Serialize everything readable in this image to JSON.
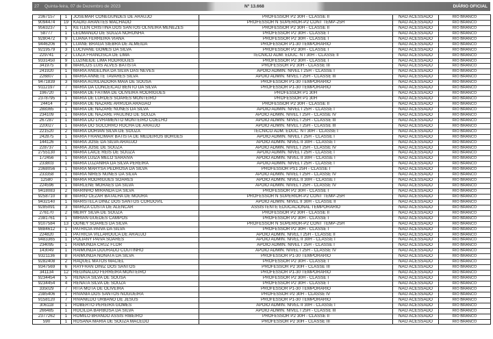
{
  "header": {
    "page": "27",
    "date": "Quinta-feira, 07 de Dezembro de 2023",
    "issue": "Nº 13.668",
    "publication": "DIÁRIO OFICIAL"
  },
  "table": {
    "rows": [
      [
        "2367157",
        "1",
        "JOSEMAR CONEGUNDES DE ARAUJO",
        "PROFESSOR P2 30H - CLASSE II",
        "NAO ACESSADO",
        "RIO BRANCO"
      ],
      [
        "9094474",
        "19",
        "KADIG ARANTES MACHADO",
        "PROFESSOR N SUPERIOR-P2 CONT TEMP-25H",
        "NAO ACESSADO",
        "RIO BRANCO"
      ],
      [
        "9563237",
        "1",
        "KETLEN CRISTINA DOS SANTOS OLIVEIRA MENEZES",
        "PROFESSOR P2 30H - CLASSE II",
        "NAO ACESSADO",
        "RIO BRANCO"
      ],
      [
        "58777",
        "1",
        "LEOMANDO DE SOUZA NORONHA",
        "PROFESSOR P2 30H - CLASSE I",
        "NAO ACESSADO",
        "RIO BRANCO"
      ],
      [
        "9280472",
        "9",
        "LUANA FERREIRA VIANA",
        "PROFESSOR P2 30H - CLASSE I",
        "NAO ACESSADO",
        "RIO BRANCO"
      ],
      [
        "9446206",
        "5",
        "LUANE BRAGA SIEBRA DE ALMEIDA",
        "PROFESSOR P1-30 TEMPORARIO",
        "NAO ACESSADO",
        "RIO BRANCO"
      ],
      [
        "9219579",
        "3",
        "LUCIVANE GOMES DA SILVA",
        "PROFESSOR P2 30H - CLASSE I",
        "NAO ACESSADO",
        "RIO BRANCO"
      ],
      [
        "229741",
        "2",
        "LUIZA FRANCISCA DE LIMA",
        "TECNICO ADM. EDUC. N I 30H - CLASSE II",
        "NAO ACESSADO",
        "RIO BRANCO"
      ],
      [
        "9331450",
        "9",
        "LUZINEIDE LIMA RODRIGUES",
        "PROFESSOR P2 30H - CLASSE I",
        "NAO ACESSADO",
        "RIO BRANCO"
      ],
      [
        "341975",
        "8",
        "MARCOS LUIS ALVES BATISTA",
        "PROFESSOR P2 30H - CLASSE III",
        "NAO ACESSADO",
        "RIO BRANCO"
      ],
      [
        "241920",
        "1",
        "MARIA ANGELINA DA SILVA DAS NEVES",
        "APOIO ADMIN. NIVEL I 25H - CLASSE I",
        "NAO ACESSADO",
        "RIO BRANCO"
      ],
      [
        "226807",
        "1",
        "MARIA ANNETE TAVARES SILVA",
        "APOIO ADMIN. NIVEL I 25H - CLASSE III",
        "NAO ACESSADO",
        "RIO BRANCO"
      ],
      [
        "9471839",
        "3",
        "MARIA AUXILIADORA MAIA DE SOUSA",
        "PROFESSOR P1-30 TEMPORARIO",
        "NAO ACESSADO",
        "RIO BRANCO"
      ],
      [
        "9112197",
        "7",
        "MARIA DA CONCEICAO BENTO DA SILVA",
        "PROFESSOR P1-30 TEMPORARIO",
        "NAO ACESSADO",
        "RIO BRANCO"
      ],
      [
        "196720",
        "1",
        "MARIA DE FATIMA DE OLIVEIRA RODRIGUES",
        "PROFESSOR P1 30H",
        "NAO ACESSADO",
        "RIO BRANCO"
      ],
      [
        "2378795",
        "1",
        "MARIA DE LURDES SOARES MONTEIRO",
        "PROFESSOR P1 30H",
        "NAO ACESSADO",
        "RIO BRANCO"
      ],
      [
        "24414",
        "2",
        "MARIA DE NAZARE ARRUDA ARAGAO",
        "PROFESSOR P2 30H - CLASSE II",
        "NAO ACESSADO",
        "RIO BRANCO"
      ],
      [
        "288365",
        "1",
        "MARIA DE NAZARE NUNES DA SILVA",
        "APOIO ADMIN. NIVEL I 25H - CLASSE I",
        "NAO ACESSADO",
        "RIO BRANCO"
      ],
      [
        "234109",
        "1",
        "MARIA DE NAZARE PAULINO DE SOUZA",
        "APOIO ADMIN. NIVEL I 25H - CLASSE IV",
        "NAO ACESSADO",
        "RIO BRANCO"
      ],
      [
        "267287",
        "1",
        "MARIA DO LIVRAMENTO MONTEIRO COELHO",
        "APOIO ADMIN. NIVEL I 25H - CLASSE III",
        "NAO ACESSADO",
        "RIO BRANCO"
      ],
      [
        "220027",
        "1",
        "MARIA DO SOCORRO ROCHA DE ARAUJO",
        "APOIO ADMIN. NIVEL I 25H - CLASSE III",
        "NAO ACESSADO",
        "RIO BRANCO"
      ],
      [
        "221520",
        "2",
        "MARIA DORIAN SILVA DE SOUZA",
        "TECNICO ADM. EDUC. N I 30H - CLASSE I",
        "NAO ACESSADO",
        "RIO BRANCO"
      ],
      [
        "242875",
        "1",
        "MARIA FRANCIMAR BATISTA DE MEDEIROS BORGES",
        "APOIO ADMIN. NIVEL I 25H - CLASSE I",
        "NAO ACESSADO",
        "RIO BRANCO"
      ],
      [
        "144126",
        "1",
        "MARIA JOSE DA SILVA ARAUJO",
        "APOIO ADMIN. NIVEL II 30H - CLASSE I",
        "NAO ACESSADO",
        "RIO BRANCO"
      ],
      [
        "228737",
        "1",
        "MARIA JOSE DE SOUZA",
        "APOIO ADMIN. NIVEL I 25H - CLASSE IV",
        "NAO ACESSADO",
        "RIO BRANCO"
      ],
      [
        "2755130",
        "1",
        "MARIA LAICE REIS DE SOUZA",
        "APOIO ADMIN. NIVEL I 25H - CLASSE I",
        "NAO ACESSADO",
        "RIO BRANCO"
      ],
      [
        "172456",
        "1",
        "MARIA LUIZA MELO SARAIVA",
        "APOIO ADMIN. NIVEL II 30H - CLASSE I",
        "NAO ACESSADO",
        "RIO BRANCO"
      ],
      [
        "233803",
        "1",
        "MARIA LUZANIRA DA SILVA PEREIRA",
        "APOIO ADMIN. NIVEL I 25H - CLASSE I",
        "NAO ACESSADO",
        "RIO BRANCO"
      ],
      [
        "2368056",
        "1",
        "MARIA MARYSA PEDROSA DA SILVA",
        "PROFESSOR PS1 25H - CLASSE I",
        "NAO ACESSADO",
        "RIO BRANCO"
      ],
      [
        "233358",
        "1",
        "MARIA NIRES NUNES DA SILVA",
        "APOIO ADMIN. NIVEL I 25H - CLASSE IV",
        "NAO ACESSADO",
        "RIO BRANCO"
      ],
      [
        "12580",
        "1",
        "MARIA RODRIGUES SOARES",
        "APOIO ADMIN. NIVEL II 30H - CLASSE I",
        "NAO ACESSADO",
        "RIO BRANCO"
      ],
      [
        "224596",
        "1",
        "MARLENE MORAES DA SILVA",
        "APOIO ADMIN. NIVEL I 25H - CLASSE IV",
        "NAO ACESSADO",
        "RIO BRANCO"
      ],
      [
        "9418083",
        "2",
        "MARINHO MIRANDA DA SILVA",
        "PROFESSOR P2 30H - CLASSE I",
        "NAO ACESSADO",
        "RIO BRANCO"
      ],
      [
        "9258710",
        "8",
        "MARIO CEZAR BATALHA DE MOURA",
        "PROFESSOR N SUPERIOR-P2 CONT TEMP-25H",
        "NAO ACESSADO",
        "RIO BRANCO"
      ],
      [
        "9432140",
        "1",
        "MARISTELA DINIZ DOS SANTOS CORDOVIL",
        "APOIO ADMIN. NIVEL II 30H - CLASSE II",
        "NAO ACESSADO",
        "RIO BRANCO"
      ],
      [
        "9285091",
        "3",
        "MARIZA COSTA DE ALENCAR",
        "ASSISTENTE EDUCACIONAL TEMPORARIO",
        "NAO ACESSADO",
        "RIO BRANCO"
      ],
      [
        "276170",
        "2",
        "MEIRY SILVA DE SOUZA",
        "PROFESSOR P2 30H - CLASSE II",
        "NAO ACESSADO",
        "RIO BRANCO"
      ],
      [
        "2381761",
        "1",
        "MIRIAN GUEDES CAMPOS",
        "PROFESSOR P2 30H - CLASSE I",
        "NAO ACESSADO",
        "RIO BRANCO"
      ],
      [
        "9107584",
        "13",
        "ODNEY SOARES DA SILVA",
        "PROFESSOR N SUPERIOR-P2 CONT TEMP-25H",
        "NAO ACESSADO",
        "RIO BRANCO"
      ],
      [
        "9884612",
        "1",
        "PATRICIA PAIVA DA SILVA",
        "PROFESSOR P2 30H - CLASSE I",
        "NAO ACESSADO",
        "RIO BRANCO"
      ],
      [
        "224820",
        "1",
        "PATRICIA VILLAROUCA DE ARAUJO",
        "APOIO ADMIN. NIVEL I 25H - CLASSE II",
        "NAO ACESSADO",
        "RIO BRANCO"
      ],
      [
        "9483365",
        "1",
        "POLIANY PAIVA SOARES",
        "APOIO ADMIN. NIVEL II 30H - CLASSE I",
        "NAO ACESSADO",
        "RIO BRANCO"
      ],
      [
        "234095",
        "1",
        "RAIMUNDA CRUZ FLOR",
        "APOIO ADMIN. NIVEL I 25H - CLASSE I",
        "NAO ACESSADO",
        "RIO BRANCO"
      ],
      [
        "143049",
        "1",
        "RAIMUNDA DOURADO COUTINHO",
        "APOIO ADMIN. NIVEL I 25H - CLASSE IV",
        "NAO ACESSADO",
        "RIO BRANCO"
      ],
      [
        "9321136",
        "8",
        "RAIMUNDA NONATA DA SILVA",
        "PROFESSOR P1-30 TEMPORARIO",
        "NAO ACESSADO",
        "RIO BRANCO"
      ],
      [
        "9282408",
        "2",
        "RAQUEL MATOS MACIEL",
        "PROFESSOR P2 30H - CLASSE I",
        "NAO ACESSADO",
        "RIO BRANCO"
      ],
      [
        "9347569",
        "6",
        "RAYFRAN DINIZ DOS SANTOS",
        "PROFESSOR P2 30H - CLASSE III",
        "NAO ACESSADO",
        "RIO BRANCO"
      ],
      [
        "341134",
        "12",
        "REGINALDO FERREIRA MONTEIRO",
        "PROFESSOR P1-30 TEMPORARIO",
        "NAO ACESSADO",
        "RIO BRANCO"
      ],
      [
        "9234454",
        "5",
        "RENATA SILVA DE SOUSA",
        "PROFESSOR P2 30H - CLASSE I",
        "NAO ACESSADO",
        "RIO BRANCO"
      ],
      [
        "9234454",
        "4",
        "RENATA SILVA DE SOUZA",
        "PROFESSOR P2 30H - CLASSE I",
        "NAO ACESSADO",
        "RIO BRANCO"
      ],
      [
        "335029",
        "7",
        "RITA MOTA DE OLIVEIRA",
        "PROFESSOR P1-30 TEMPORARIO",
        "NAO ACESSADO",
        "RIO BRANCO"
      ],
      [
        "2385406",
        "1",
        "RIVANIA DOS SANTOS NOGUEIRA",
        "PROFESSOR P2 30H - CLASSE IV",
        "NAO ACESSADO",
        "RIO BRANCO"
      ],
      [
        "9158120",
        "7",
        "RIVANILDO URBANO DE JESUS",
        "PROFESSOR P1-30 TEMPORARIO",
        "NAO ACESSADO",
        "RIO BRANCO"
      ],
      [
        "306118",
        "1",
        "ROBERTO PEREIRA GOMES",
        "APOIO ADMIN. NIVEL II 30H - CLASSE I",
        "NAO ACESSADO",
        "RIO BRANCO"
      ],
      [
        "266485",
        "1",
        "ROCILDA BARBOSA DA SILVA",
        "APOIO ADMIN. NIVEL I 25H - CLASSE III",
        "NAO ACESSADO",
        "RIO BRANCO"
      ],
      [
        "2377262",
        "1",
        "ROMILO BRANDO ASSIS RIBEIRO",
        "PROFESSOR P2 30H - CLASSE II",
        "NAO ACESSADO",
        "RIO BRANCO"
      ],
      [
        "590",
        "1",
        "ROSANA MARIA DE SOUZA MACEDO",
        "PROFESSOR P2 30H - CLASSE III",
        "NAO ACESSADO",
        "RIO BRANCO"
      ]
    ]
  }
}
